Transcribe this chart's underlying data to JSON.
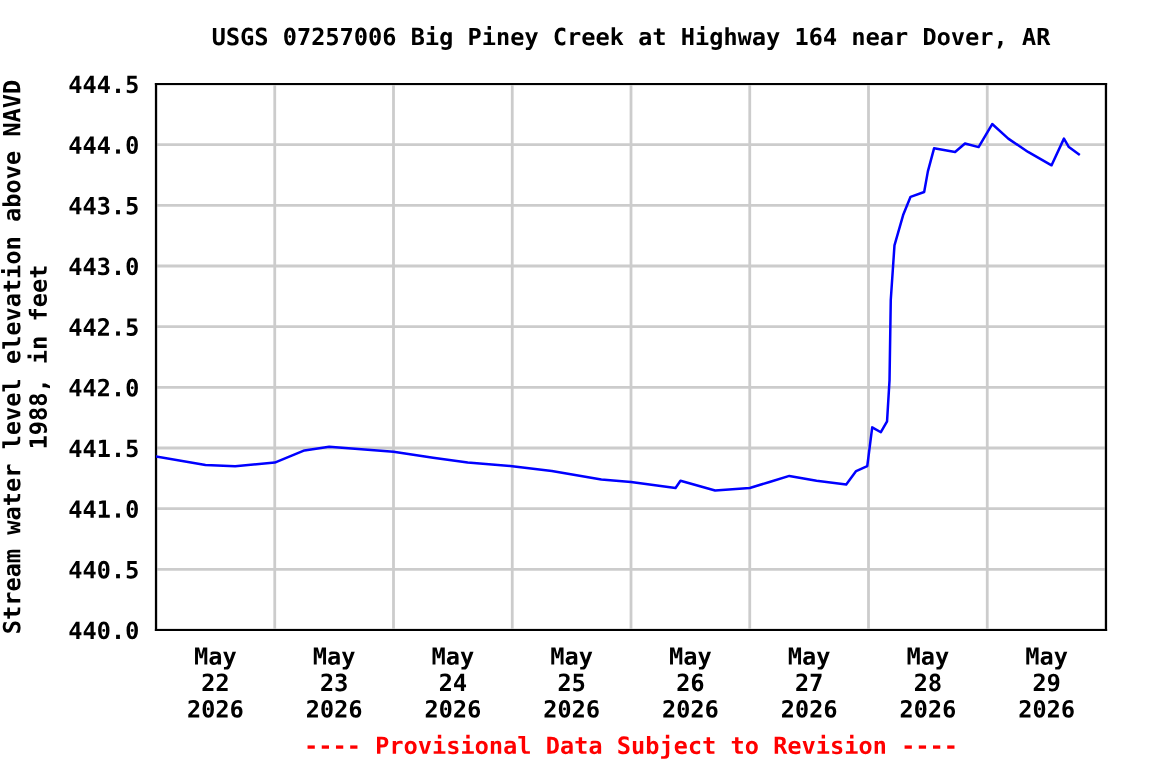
{
  "chart_data": {
    "type": "line",
    "title": "USGS 07257006 Big Piney Creek at Highway 164 near Dover, AR",
    "ylabel": "Stream water level elevation above NAVD\n1988, in feet",
    "annotations": [
      "---- Provisional Data Subject to Revision ----"
    ],
    "x": [
      "2026-05-22T00:00",
      "2026-05-22T10:00",
      "2026-05-22T16:00",
      "2026-05-23T00:00",
      "2026-05-23T06:00",
      "2026-05-23T11:00",
      "2026-05-24T00:00",
      "2026-05-24T08:00",
      "2026-05-24T15:00",
      "2026-05-25T00:00",
      "2026-05-25T08:00",
      "2026-05-25T18:00",
      "2026-05-26T00:00",
      "2026-05-26T09:00",
      "2026-05-26T10:00",
      "2026-05-26T17:00",
      "2026-05-27T00:00",
      "2026-05-27T04:00",
      "2026-05-27T08:00",
      "2026-05-27T13:30",
      "2026-05-27T19:30",
      "2026-05-27T21:30",
      "2026-05-27T23:45",
      "2026-05-28T00:45",
      "2026-05-28T02:30",
      "2026-05-28T03:45",
      "2026-05-28T04:15",
      "2026-05-28T04:30",
      "2026-05-28T05:15",
      "2026-05-28T07:00",
      "2026-05-28T08:30",
      "2026-05-28T11:15",
      "2026-05-28T12:00",
      "2026-05-28T13:15",
      "2026-05-28T17:30",
      "2026-05-28T19:30",
      "2026-05-28T22:15",
      "2026-05-29T01:00",
      "2026-05-29T04:15",
      "2026-05-29T08:15",
      "2026-05-29T13:00",
      "2026-05-29T15:30",
      "2026-05-29T16:30",
      "2026-05-29T18:30"
    ],
    "series": [
      {
        "color": "#0000ff",
        "values": [
          441.43,
          441.36,
          441.35,
          441.38,
          441.48,
          441.51,
          441.47,
          441.42,
          441.38,
          441.35,
          441.31,
          441.24,
          441.22,
          441.17,
          441.23,
          441.15,
          441.17,
          441.22,
          441.27,
          441.23,
          441.2,
          441.31,
          441.35,
          441.67,
          441.63,
          441.72,
          442.06,
          442.72,
          443.17,
          443.42,
          443.57,
          443.61,
          443.78,
          443.97,
          443.94,
          444.01,
          443.98,
          444.17,
          444.05,
          443.94,
          443.83,
          444.05,
          443.98,
          443.92
        ]
      }
    ],
    "xlim": [
      "2026-05-22T00:00",
      "2026-05-30T00:00"
    ],
    "xticks": [
      {
        "value": "2026-05-22T00:00",
        "label": null
      },
      {
        "value": "2026-05-22T12:00",
        "label": "May\n22\n2026"
      },
      {
        "value": "2026-05-23T00:00",
        "label": null
      },
      {
        "value": "2026-05-23T12:00",
        "label": "May\n23\n2026"
      },
      {
        "value": "2026-05-24T00:00",
        "label": null
      },
      {
        "value": "2026-05-24T12:00",
        "label": "May\n24\n2026"
      },
      {
        "value": "2026-05-25T00:00",
        "label": null
      },
      {
        "value": "2026-05-25T12:00",
        "label": "May\n25\n2026"
      },
      {
        "value": "2026-05-26T00:00",
        "label": null
      },
      {
        "value": "2026-05-26T12:00",
        "label": "May\n26\n2026"
      },
      {
        "value": "2026-05-27T00:00",
        "label": null
      },
      {
        "value": "2026-05-27T12:00",
        "label": "May\n27\n2026"
      },
      {
        "value": "2026-05-28T00:00",
        "label": null
      },
      {
        "value": "2026-05-28T12:00",
        "label": "May\n28\n2026"
      },
      {
        "value": "2026-05-29T00:00",
        "label": null
      },
      {
        "value": "2026-05-29T12:00",
        "label": "May\n29\n2026"
      },
      {
        "value": "2026-05-30T00:00",
        "label": null
      }
    ],
    "ylim": [
      440.0,
      444.5
    ],
    "yticks": [
      {
        "value": 440.0,
        "label": "440.0"
      },
      {
        "value": 440.5,
        "label": "440.5"
      },
      {
        "value": 441.0,
        "label": "441.0"
      },
      {
        "value": 441.5,
        "label": "441.5"
      },
      {
        "value": 442.0,
        "label": "442.0"
      },
      {
        "value": 442.5,
        "label": "442.5"
      },
      {
        "value": 443.0,
        "label": "443.0"
      },
      {
        "value": 443.5,
        "label": "443.5"
      },
      {
        "value": 444.0,
        "label": "444.0"
      },
      {
        "value": 444.5,
        "label": "444.5"
      }
    ],
    "grid": true,
    "legend": false
  }
}
